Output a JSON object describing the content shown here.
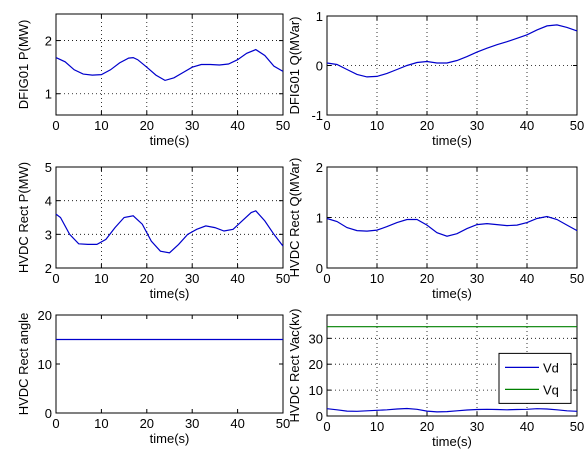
{
  "chart_data": [
    {
      "type": "line",
      "xlabel": "time(s)",
      "ylabel": "DFIG01 P(MW)",
      "xlim": [
        0,
        50
      ],
      "ylim": [
        0.6,
        2.5
      ],
      "xticks": [
        0,
        10,
        20,
        30,
        40,
        50
      ],
      "yticks": [
        1,
        2
      ],
      "grid": true,
      "series": [
        {
          "color": "#0000cc",
          "x": [
            0,
            2,
            4,
            6,
            8,
            10,
            12,
            14,
            16,
            17,
            18,
            20,
            22,
            24,
            26,
            28,
            30,
            32,
            34,
            36,
            38,
            40,
            42,
            44,
            46,
            48,
            50
          ],
          "y": [
            1.68,
            1.6,
            1.45,
            1.37,
            1.35,
            1.36,
            1.45,
            1.58,
            1.67,
            1.68,
            1.64,
            1.5,
            1.35,
            1.25,
            1.3,
            1.4,
            1.5,
            1.55,
            1.55,
            1.54,
            1.56,
            1.64,
            1.76,
            1.83,
            1.72,
            1.52,
            1.42
          ]
        }
      ]
    },
    {
      "type": "line",
      "xlabel": "time(s)",
      "ylabel": "DFIG01 Q(MVar)",
      "xlim": [
        0,
        50
      ],
      "ylim": [
        -1,
        1
      ],
      "xticks": [
        0,
        10,
        20,
        30,
        40,
        50
      ],
      "yticks": [
        -1,
        0,
        1
      ],
      "grid": true,
      "series": [
        {
          "color": "#0000cc",
          "x": [
            0,
            2,
            4,
            6,
            8,
            10,
            12,
            14,
            16,
            18,
            20,
            22,
            24,
            26,
            28,
            30,
            32,
            34,
            36,
            38,
            40,
            42,
            44,
            46,
            48,
            50
          ],
          "y": [
            0.05,
            0.02,
            -0.08,
            -0.18,
            -0.23,
            -0.22,
            -0.16,
            -0.08,
            0.0,
            0.06,
            0.08,
            0.05,
            0.05,
            0.1,
            0.18,
            0.27,
            0.35,
            0.42,
            0.48,
            0.55,
            0.62,
            0.72,
            0.8,
            0.82,
            0.77,
            0.7
          ]
        }
      ]
    },
    {
      "type": "line",
      "xlabel": "time(s)",
      "ylabel": "HVDC Rect P(MW)",
      "xlim": [
        0,
        50
      ],
      "ylim": [
        2,
        5
      ],
      "xticks": [
        0,
        10,
        20,
        30,
        40,
        50
      ],
      "yticks": [
        2,
        3,
        4,
        5
      ],
      "grid": true,
      "series": [
        {
          "color": "#0000cc",
          "x": [
            0,
            1,
            3,
            5,
            7,
            9,
            11,
            13,
            15,
            17,
            19,
            21,
            23,
            25,
            27,
            29,
            31,
            33,
            35,
            37,
            39,
            41,
            43,
            44,
            46,
            48,
            50
          ],
          "y": [
            3.6,
            3.5,
            3.0,
            2.72,
            2.7,
            2.7,
            2.85,
            3.2,
            3.5,
            3.55,
            3.3,
            2.8,
            2.5,
            2.45,
            2.7,
            3.0,
            3.15,
            3.25,
            3.2,
            3.1,
            3.15,
            3.4,
            3.65,
            3.7,
            3.4,
            3.0,
            2.65
          ]
        }
      ]
    },
    {
      "type": "line",
      "xlabel": "time(s)",
      "ylabel": "HVDC Rect Q(MVar)",
      "xlim": [
        0,
        50
      ],
      "ylim": [
        0,
        2
      ],
      "xticks": [
        0,
        10,
        20,
        30,
        40,
        50
      ],
      "yticks": [
        0,
        1,
        2
      ],
      "grid": true,
      "series": [
        {
          "color": "#0000cc",
          "x": [
            0,
            2,
            4,
            6,
            8,
            10,
            12,
            14,
            16,
            18,
            20,
            22,
            24,
            26,
            28,
            30,
            32,
            34,
            36,
            38,
            40,
            42,
            44,
            46,
            48,
            50
          ],
          "y": [
            0.98,
            0.92,
            0.8,
            0.74,
            0.73,
            0.75,
            0.82,
            0.9,
            0.96,
            0.96,
            0.85,
            0.7,
            0.63,
            0.68,
            0.78,
            0.86,
            0.88,
            0.86,
            0.84,
            0.85,
            0.9,
            0.98,
            1.02,
            0.96,
            0.85,
            0.74
          ]
        }
      ]
    },
    {
      "type": "line",
      "xlabel": "time(s)",
      "ylabel": "HVDC Rect angle",
      "xlim": [
        0,
        50
      ],
      "ylim": [
        0,
        20
      ],
      "xticks": [
        0,
        10,
        20,
        30,
        40,
        50
      ],
      "yticks": [
        0,
        10,
        20
      ],
      "grid": false,
      "series": [
        {
          "color": "#0000cc",
          "x": [
            0,
            50
          ],
          "y": [
            15,
            15
          ]
        }
      ]
    },
    {
      "type": "line",
      "xlabel": "time(s)",
      "ylabel": "HVDC Rect Vac(kv)",
      "xlim": [
        0,
        50
      ],
      "ylim": [
        0,
        39
      ],
      "xticks": [
        0,
        10,
        20,
        30,
        40,
        50
      ],
      "yticks": [
        0,
        10,
        20,
        30
      ],
      "grid": true,
      "legend": "right",
      "series": [
        {
          "name": "Vd",
          "color": "#0000cc",
          "x": [
            0,
            2,
            4,
            6,
            8,
            10,
            12,
            14,
            16,
            18,
            20,
            22,
            24,
            26,
            28,
            30,
            32,
            34,
            36,
            38,
            40,
            42,
            44,
            46,
            48,
            50
          ],
          "y": [
            2.8,
            2.4,
            1.9,
            1.8,
            2.0,
            2.2,
            2.4,
            2.7,
            2.9,
            2.6,
            1.9,
            1.6,
            1.7,
            2.0,
            2.3,
            2.5,
            2.6,
            2.5,
            2.4,
            2.5,
            2.6,
            2.8,
            2.7,
            2.4,
            2.0,
            1.8
          ]
        },
        {
          "name": "Vq",
          "color": "#008000",
          "x": [
            0,
            50
          ],
          "y": [
            34.5,
            34.5
          ]
        }
      ]
    }
  ]
}
